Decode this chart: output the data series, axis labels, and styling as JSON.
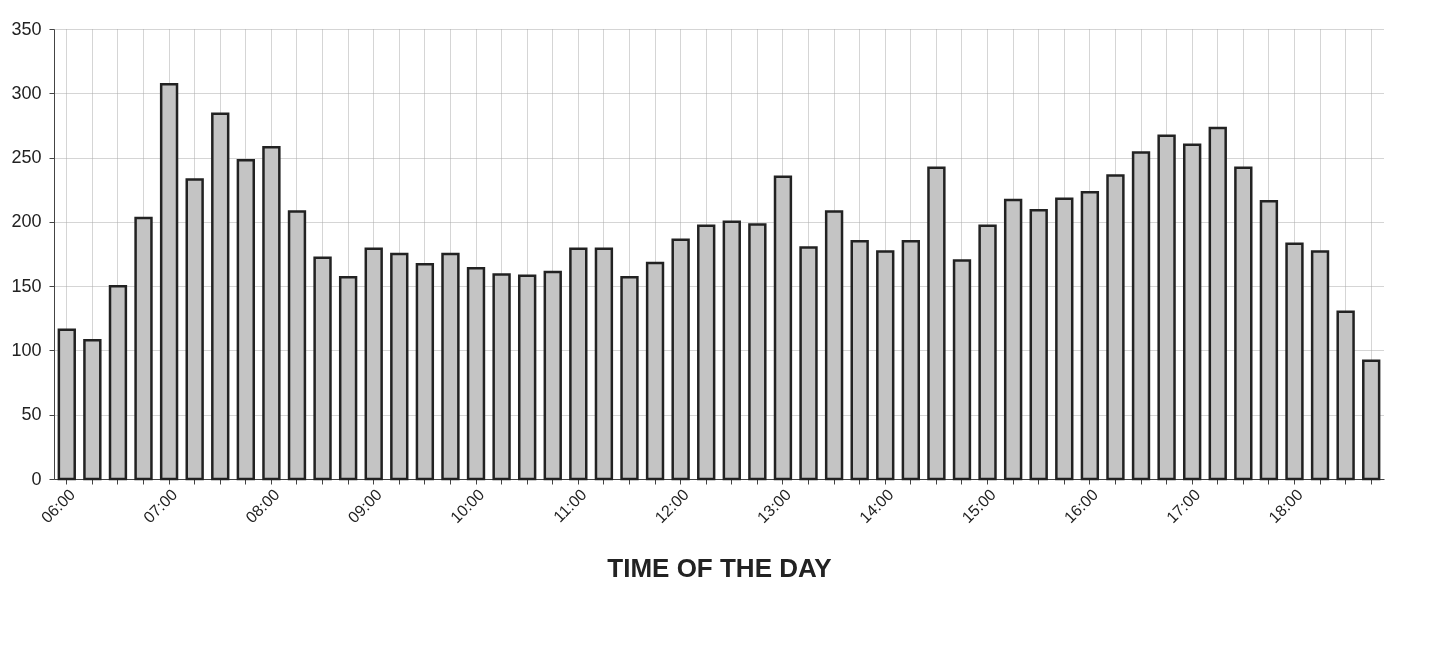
{
  "chart_data": {
    "type": "bar",
    "xlabel": "TIME OF THE DAY",
    "categories": [
      "06:00",
      null,
      null,
      null,
      "07:00",
      null,
      null,
      null,
      "08:00",
      null,
      null,
      null,
      "09:00",
      null,
      null,
      null,
      "10:00",
      null,
      null,
      null,
      "11:00",
      null,
      null,
      null,
      "12:00",
      null,
      null,
      null,
      "13:00",
      null,
      null,
      null,
      "14:00",
      null,
      null,
      null,
      "15:00",
      null,
      null,
      null,
      "16:00",
      null,
      null,
      null,
      "17:00",
      null,
      null,
      null,
      "18:00",
      null,
      null,
      null
    ],
    "values": [
      116,
      108,
      150,
      203,
      307,
      233,
      284,
      248,
      258,
      208,
      172,
      157,
      179,
      175,
      167,
      175,
      164,
      159,
      158,
      161,
      179,
      179,
      157,
      168,
      186,
      197,
      200,
      198,
      235,
      180,
      208,
      185,
      177,
      185,
      242,
      170,
      197,
      217,
      209,
      218,
      223,
      236,
      254,
      267,
      260,
      273,
      242,
      216,
      183,
      177,
      130,
      92
    ],
    "color": "#c4c4c4",
    "ylim": [
      0,
      350
    ],
    "yticks": [
      0,
      50,
      100,
      150,
      200,
      250,
      300,
      350
    ],
    "grid": true
  }
}
